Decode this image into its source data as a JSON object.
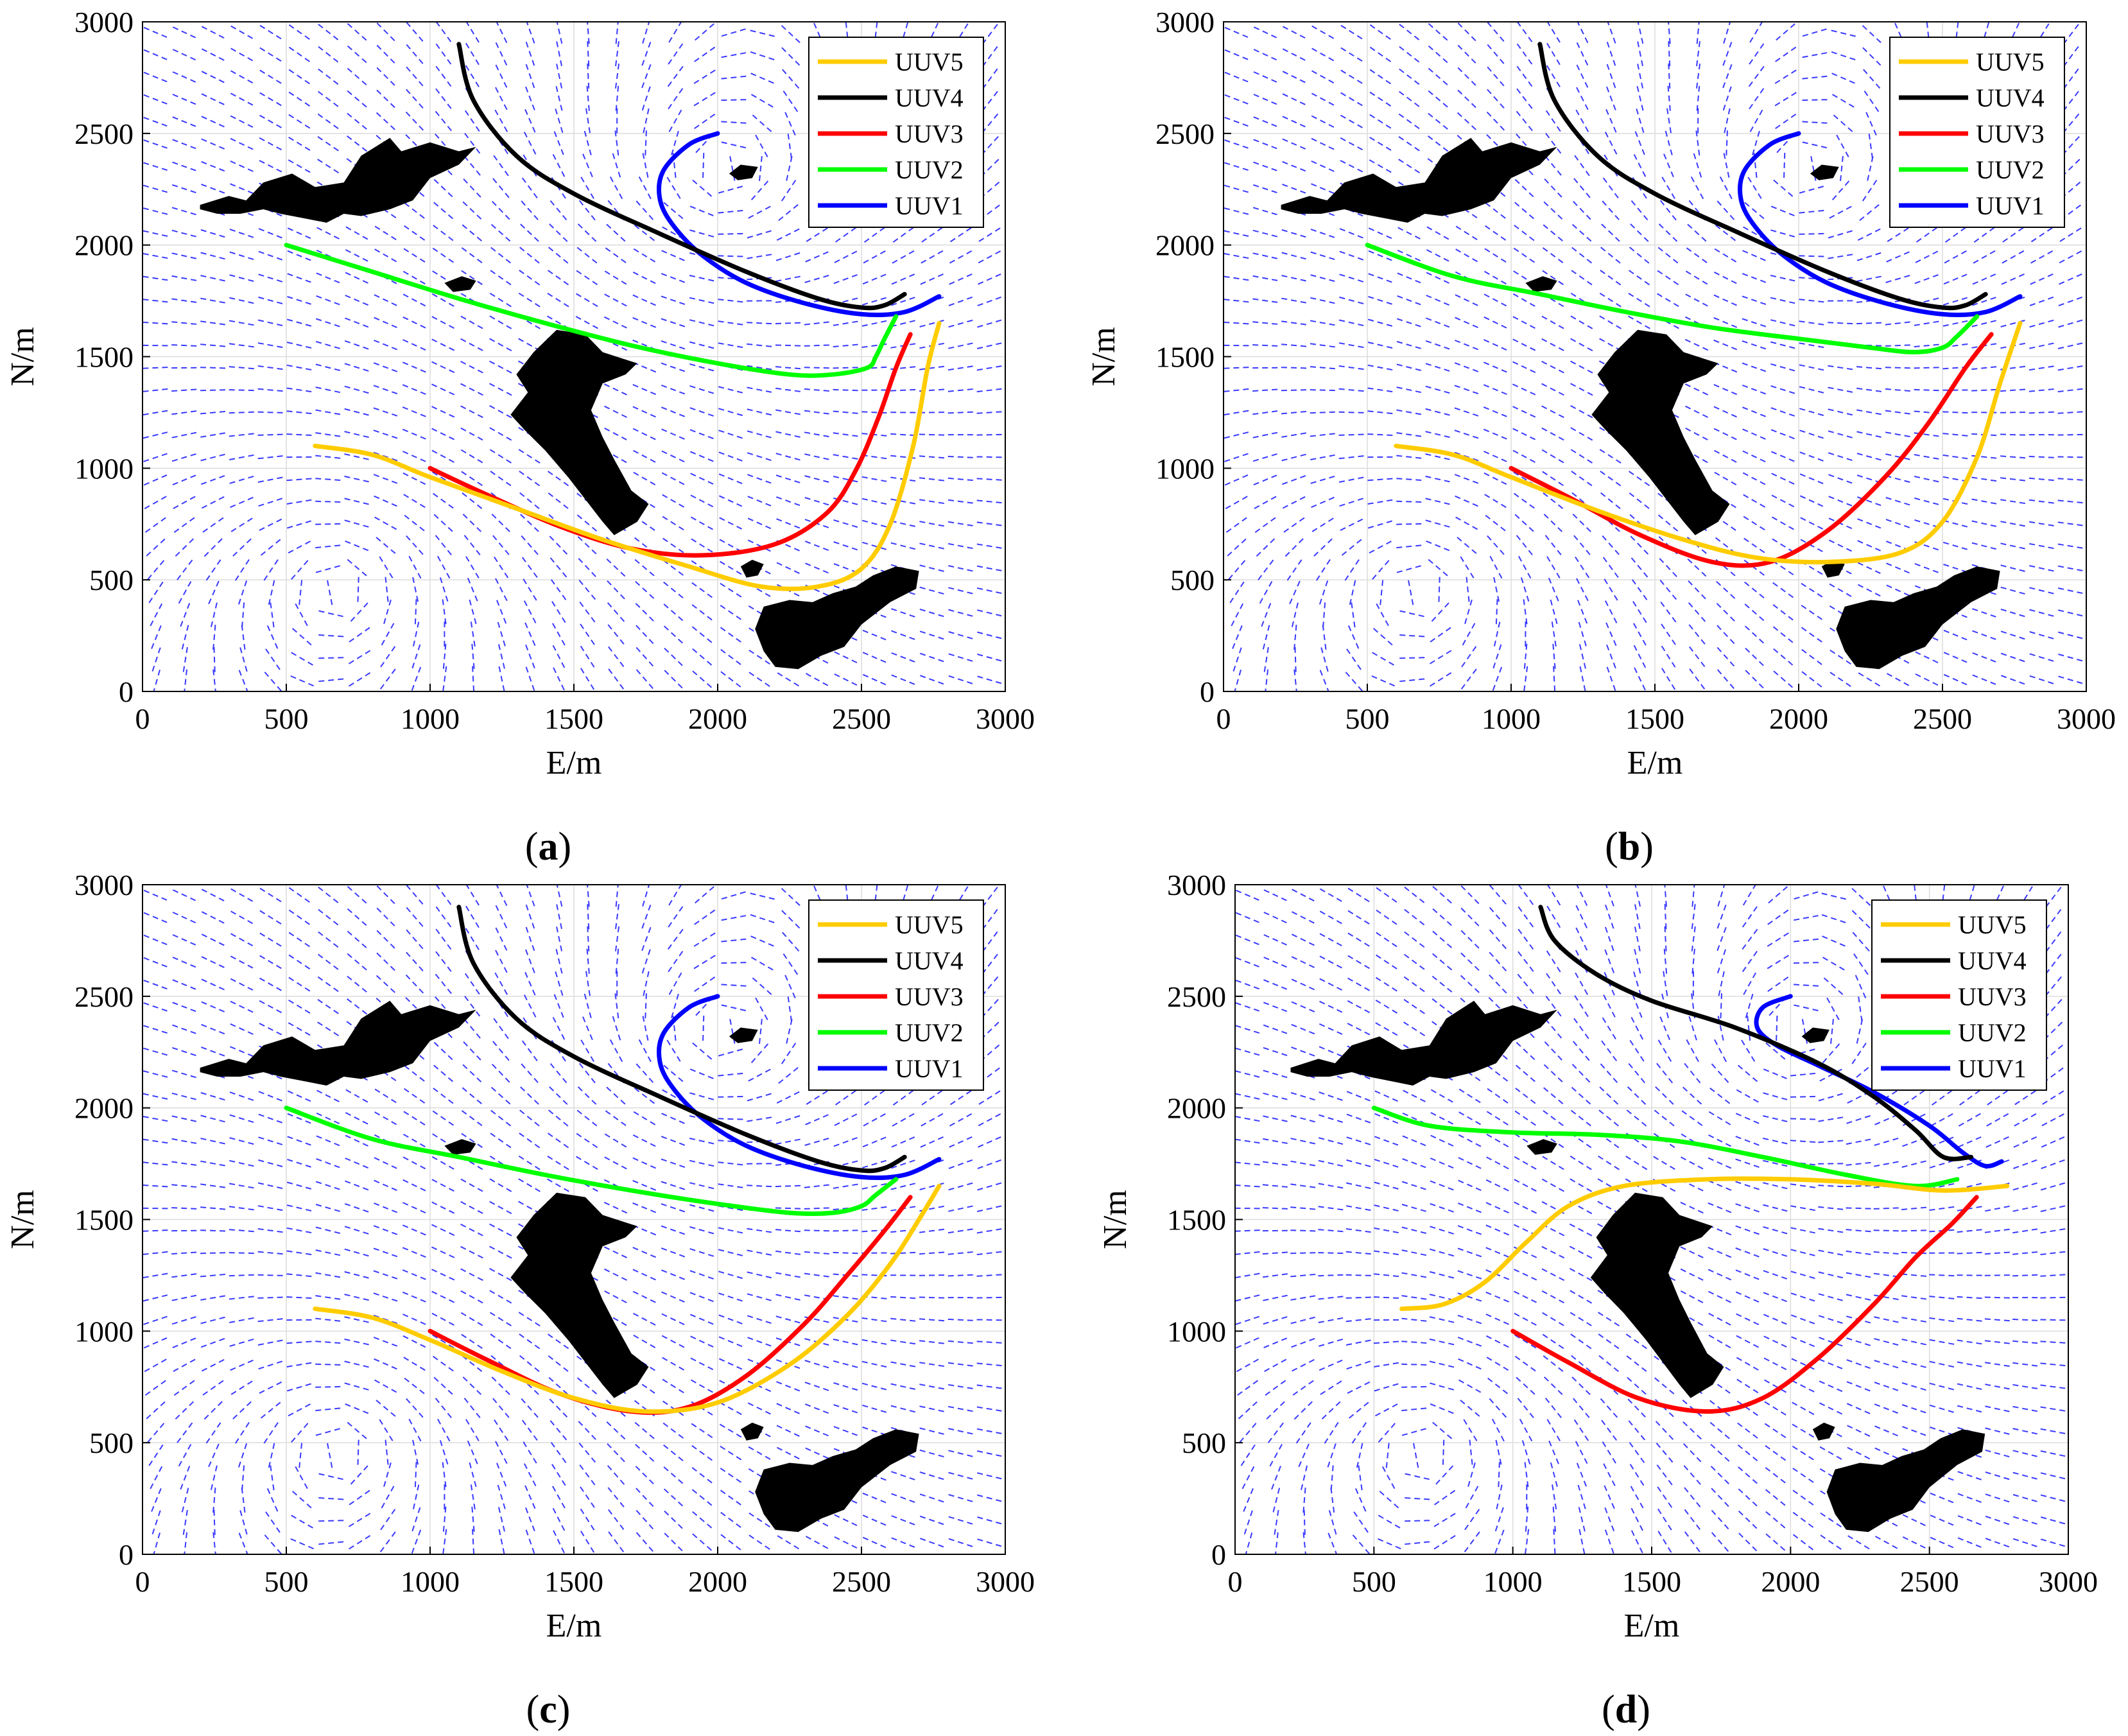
{
  "figure": {
    "panels_layout": "2x2"
  },
  "chart_data": [
    {
      "panel": "a",
      "caption_letter": "a",
      "type": "line",
      "xlabel": "E/m",
      "ylabel": "N/m",
      "xlim": [
        0,
        3000
      ],
      "ylim": [
        0,
        3000
      ],
      "xticks": [
        "0",
        "500",
        "1000",
        "1500",
        "2000",
        "2500",
        "3000"
      ],
      "yticks": [
        "0",
        "500",
        "1000",
        "1500",
        "2000",
        "2500",
        "3000"
      ],
      "legend": [
        "UUV5",
        "UUV4",
        "UUV3",
        "UUV2",
        "UUV1"
      ],
      "legend_position": "top-right",
      "series": [
        {
          "name": "UUV5",
          "color": "#ffcc00",
          "x": [
            600,
            800,
            1000,
            1300,
            1600,
            1900,
            2150,
            2350,
            2500,
            2600,
            2680,
            2730,
            2770
          ],
          "y": [
            1100,
            1060,
            960,
            820,
            680,
            560,
            470,
            470,
            550,
            750,
            1100,
            1450,
            1650
          ]
        },
        {
          "name": "UUV4",
          "color": "#000000",
          "x": [
            1100,
            1150,
            1300,
            1500,
            1800,
            2100,
            2350,
            2500,
            2580,
            2650
          ],
          "y": [
            2900,
            2650,
            2400,
            2230,
            2050,
            1880,
            1760,
            1720,
            1730,
            1780
          ]
        },
        {
          "name": "UUV3",
          "color": "#ff0000",
          "x": [
            1000,
            1200,
            1450,
            1700,
            1950,
            2200,
            2380,
            2480,
            2560,
            2620,
            2670
          ],
          "y": [
            1000,
            880,
            740,
            640,
            610,
            660,
            800,
            990,
            1230,
            1450,
            1600
          ]
        },
        {
          "name": "UUV2",
          "color": "#00ff00",
          "x": [
            500,
            800,
            1100,
            1400,
            1700,
            2000,
            2250,
            2400,
            2520,
            2550,
            2580,
            2620
          ],
          "y": [
            2000,
            1880,
            1760,
            1650,
            1550,
            1470,
            1420,
            1420,
            1450,
            1500,
            1580,
            1680
          ]
        },
        {
          "name": "UUV1",
          "color": "#0000ff",
          "x": [
            2000,
            1900,
            1810,
            1800,
            1850,
            1950,
            2100,
            2300,
            2500,
            2650,
            2770
          ],
          "y": [
            2500,
            2450,
            2330,
            2200,
            2080,
            1950,
            1830,
            1740,
            1690,
            1700,
            1770
          ]
        }
      ]
    },
    {
      "panel": "b",
      "caption_letter": "b",
      "type": "line",
      "xlabel": "E/m",
      "ylabel": "N/m",
      "xlim": [
        0,
        3000
      ],
      "ylim": [
        0,
        3000
      ],
      "xticks": [
        "0",
        "500",
        "1000",
        "1500",
        "2000",
        "2500",
        "3000"
      ],
      "yticks": [
        "0",
        "500",
        "1000",
        "1500",
        "2000",
        "2500",
        "3000"
      ],
      "legend": [
        "UUV5",
        "UUV4",
        "UUV3",
        "UUV2",
        "UUV1"
      ],
      "legend_position": "top-right",
      "series": [
        {
          "name": "UUV5",
          "color": "#ffcc00",
          "x": [
            600,
            800,
            1000,
            1300,
            1600,
            1850,
            2100,
            2350,
            2500,
            2620,
            2700,
            2770
          ],
          "y": [
            1100,
            1060,
            960,
            810,
            680,
            600,
            580,
            620,
            760,
            1050,
            1380,
            1650
          ]
        },
        {
          "name": "UUV4",
          "color": "#000000",
          "x": [
            1100,
            1150,
            1300,
            1500,
            1800,
            2100,
            2350,
            2500,
            2580,
            2650
          ],
          "y": [
            2900,
            2650,
            2400,
            2230,
            2050,
            1880,
            1760,
            1720,
            1730,
            1780
          ]
        },
        {
          "name": "UUV3",
          "color": "#ff0000",
          "x": [
            1000,
            1200,
            1450,
            1700,
            1900,
            2100,
            2300,
            2450,
            2580,
            2670
          ],
          "y": [
            1000,
            870,
            700,
            580,
            580,
            720,
            960,
            1200,
            1450,
            1600
          ]
        },
        {
          "name": "UUV2",
          "color": "#00ff00",
          "x": [
            500,
            800,
            1100,
            1400,
            1700,
            2000,
            2250,
            2400,
            2500,
            2550,
            2620
          ],
          "y": [
            2000,
            1860,
            1780,
            1700,
            1630,
            1580,
            1540,
            1520,
            1540,
            1590,
            1680
          ]
        },
        {
          "name": "UUV1",
          "color": "#0000ff",
          "x": [
            2000,
            1900,
            1810,
            1800,
            1850,
            1950,
            2100,
            2300,
            2500,
            2650,
            2770
          ],
          "y": [
            2500,
            2450,
            2330,
            2200,
            2080,
            1950,
            1830,
            1740,
            1690,
            1700,
            1770
          ]
        }
      ]
    },
    {
      "panel": "c",
      "caption_letter": "c",
      "type": "line",
      "xlabel": "E/m",
      "ylabel": "N/m",
      "xlim": [
        0,
        3000
      ],
      "ylim": [
        0,
        3000
      ],
      "xticks": [
        "0",
        "500",
        "1000",
        "1500",
        "2000",
        "2500",
        "3000"
      ],
      "yticks": [
        "0",
        "500",
        "1000",
        "1500",
        "2000",
        "2500",
        "3000"
      ],
      "legend": [
        "UUV5",
        "UUV4",
        "UUV3",
        "UUV2",
        "UUV1"
      ],
      "legend_position": "top-right",
      "series": [
        {
          "name": "UUV5",
          "color": "#ffcc00",
          "x": [
            600,
            800,
            1000,
            1250,
            1500,
            1750,
            2000,
            2250,
            2450,
            2600,
            2700,
            2770
          ],
          "y": [
            1100,
            1060,
            960,
            820,
            700,
            640,
            680,
            850,
            1070,
            1300,
            1500,
            1650
          ]
        },
        {
          "name": "UUV4",
          "color": "#000000",
          "x": [
            1100,
            1150,
            1300,
            1500,
            1800,
            2100,
            2350,
            2500,
            2580,
            2650
          ],
          "y": [
            2900,
            2650,
            2400,
            2230,
            2050,
            1880,
            1760,
            1720,
            1730,
            1780
          ]
        },
        {
          "name": "UUV3",
          "color": "#ff0000",
          "x": [
            1000,
            1200,
            1450,
            1700,
            1900,
            2100,
            2300,
            2450,
            2580,
            2670
          ],
          "y": [
            1000,
            870,
            720,
            640,
            660,
            800,
            1030,
            1250,
            1450,
            1600
          ]
        },
        {
          "name": "UUV2",
          "color": "#00ff00",
          "x": [
            500,
            800,
            1100,
            1400,
            1700,
            2000,
            2250,
            2400,
            2500,
            2550,
            2620
          ],
          "y": [
            2000,
            1860,
            1780,
            1700,
            1630,
            1570,
            1530,
            1530,
            1560,
            1610,
            1680
          ]
        },
        {
          "name": "UUV1",
          "color": "#0000ff",
          "x": [
            2000,
            1900,
            1810,
            1800,
            1850,
            1950,
            2100,
            2300,
            2500,
            2650,
            2770
          ],
          "y": [
            2500,
            2450,
            2330,
            2200,
            2080,
            1950,
            1830,
            1740,
            1690,
            1700,
            1770
          ]
        }
      ]
    },
    {
      "panel": "d",
      "caption_letter": "d",
      "type": "line",
      "xlabel": "E/m",
      "ylabel": "N/m",
      "xlim": [
        0,
        3000
      ],
      "ylim": [
        0,
        3000
      ],
      "xticks": [
        "0",
        "500",
        "1000",
        "1500",
        "2000",
        "2500",
        "3000"
      ],
      "yticks": [
        "0",
        "500",
        "1000",
        "1500",
        "2000",
        "2500",
        "3000"
      ],
      "legend": [
        "UUV5",
        "UUV4",
        "UUV3",
        "UUV2",
        "UUV1"
      ],
      "legend_position": "top-right",
      "series": [
        {
          "name": "UUV5",
          "color": "#ffcc00",
          "x": [
            600,
            750,
            900,
            1050,
            1200,
            1400,
            1700,
            2000,
            2300,
            2550,
            2780
          ],
          "y": [
            1100,
            1120,
            1220,
            1400,
            1560,
            1650,
            1680,
            1680,
            1660,
            1630,
            1650
          ]
        },
        {
          "name": "UUV4",
          "color": "#000000",
          "x": [
            1100,
            1150,
            1300,
            1500,
            1800,
            2100,
            2300,
            2450,
            2550,
            2650
          ],
          "y": [
            2900,
            2750,
            2600,
            2480,
            2360,
            2200,
            2050,
            1900,
            1780,
            1780
          ]
        },
        {
          "name": "UUV3",
          "color": "#ff0000",
          "x": [
            1000,
            1200,
            1450,
            1700,
            1900,
            2100,
            2300,
            2450,
            2580,
            2670
          ],
          "y": [
            1000,
            860,
            700,
            640,
            700,
            880,
            1120,
            1330,
            1480,
            1600
          ]
        },
        {
          "name": "UUV2",
          "color": "#00ff00",
          "x": [
            500,
            700,
            1000,
            1300,
            1600,
            1900,
            2200,
            2450,
            2600
          ],
          "y": [
            2000,
            1920,
            1890,
            1880,
            1850,
            1780,
            1700,
            1650,
            1680
          ]
        },
        {
          "name": "UUV1",
          "color": "#0000ff",
          "x": [
            2000,
            1900,
            1880,
            1950,
            2100,
            2300,
            2500,
            2620,
            2700,
            2760
          ],
          "y": [
            2500,
            2450,
            2360,
            2280,
            2190,
            2070,
            1920,
            1800,
            1740,
            1760
          ]
        }
      ]
    }
  ]
}
